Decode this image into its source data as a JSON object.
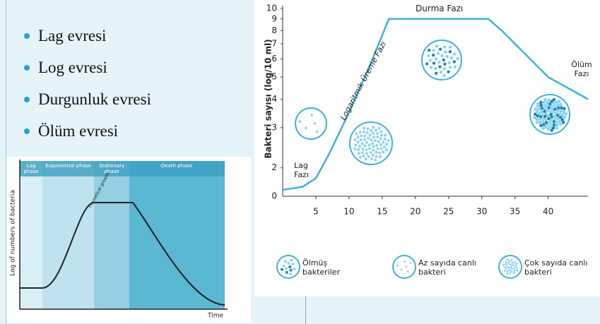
{
  "bullets": [
    "Lag evresi",
    "Log evresi",
    "Durgunluk evresi",
    "Ölüm evresi"
  ],
  "chart_data": [
    {
      "type": "phase-diagram",
      "phases": [
        "Lag phase",
        "Exponential phase",
        "Stationary phase",
        "Death phase"
      ],
      "annotation": "Theoretical growth",
      "y_label": "Log of numbers of bacteria",
      "x_label": "Time"
    },
    {
      "type": "line",
      "y_label": "Bakteri sayısı (log/10 ml)",
      "x": [
        0,
        3,
        5,
        7,
        10,
        13,
        16,
        31,
        33,
        40,
        46
      ],
      "values": [
        1.6,
        1.65,
        1.8,
        2.3,
        3.5,
        5.5,
        9,
        9,
        8,
        5,
        4
      ],
      "color": "#3fb3d6",
      "xlim": [
        0,
        46
      ],
      "xticks": [
        5,
        10,
        15,
        20,
        25,
        30,
        35,
        40
      ],
      "ylim": [
        1.5,
        10
      ],
      "yticks": [
        2,
        3,
        4,
        5,
        6,
        7,
        8,
        9,
        10
      ],
      "log_scale": true,
      "y_origin_label": "0",
      "annotations": [
        "Durma Fazı",
        "Ölüm Fazı",
        "Lag Fazı",
        "Logaritmik Üreme Fazı"
      ],
      "legend": [
        "Ölmüş bakteriler",
        "Az sayıda canlı bakteri",
        "Çok sayıda canlı bakteri"
      ]
    }
  ]
}
